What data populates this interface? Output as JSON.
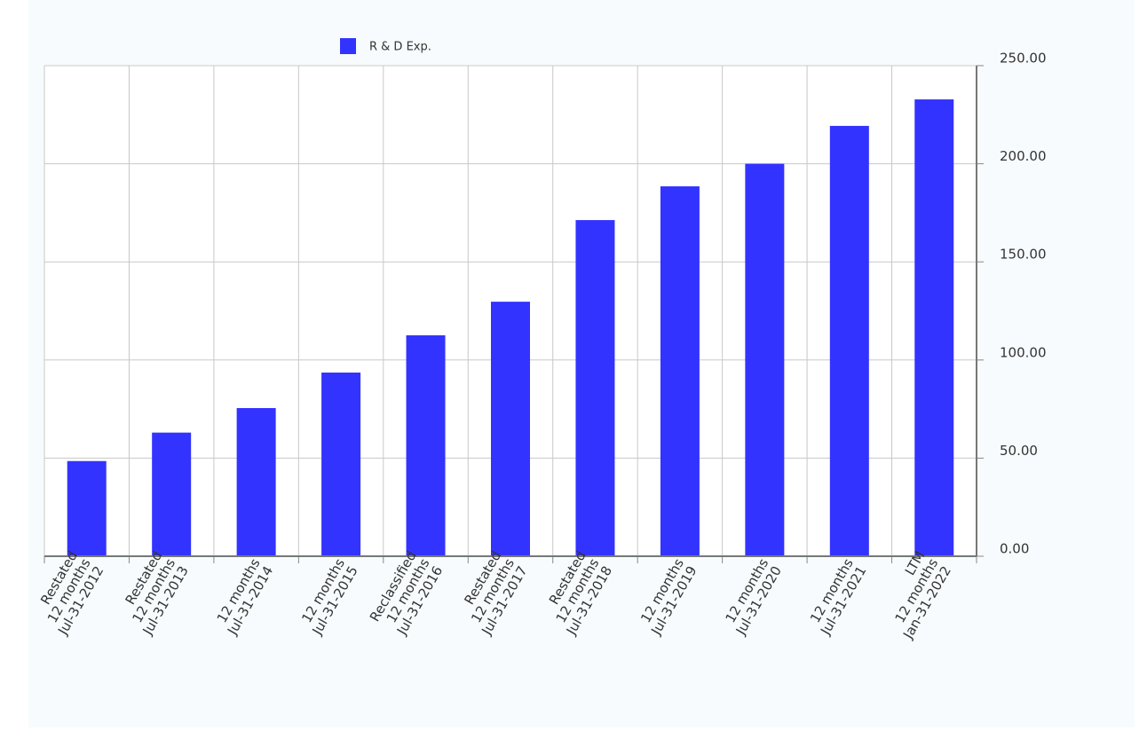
{
  "chart_data": {
    "type": "bar",
    "categories": [
      [
        "Restated",
        "12 months",
        "Jul-31-2012"
      ],
      [
        "Restated",
        "12 months",
        "Jul-31-2013"
      ],
      [
        "12 months",
        "Jul-31-2014"
      ],
      [
        "12 months",
        "Jul-31-2015"
      ],
      [
        "Reclassified",
        "12 months",
        "Jul-31-2016"
      ],
      [
        "Restated",
        "12 months",
        "Jul-31-2017"
      ],
      [
        "Restated",
        "12 months",
        "Jul-31-2018"
      ],
      [
        "12 months",
        "Jul-31-2019"
      ],
      [
        "12 months",
        "Jul-31-2020"
      ],
      [
        "12 months",
        "Jul-31-2021"
      ],
      [
        "LTM",
        "12 months",
        "Jan-31-2022"
      ]
    ],
    "series": [
      {
        "name": "R & D Exp.",
        "color": "#3333ff",
        "values": [
          48.5,
          63,
          75.5,
          93.6,
          112.6,
          129.7,
          171.3,
          188.5,
          200,
          219.3,
          232.8
        ]
      }
    ],
    "ylim": [
      0,
      250
    ],
    "yticks": [
      {
        "value": 0,
        "label": "0.00"
      },
      {
        "value": 50,
        "label": "50.00"
      },
      {
        "value": 100,
        "label": "100.00"
      },
      {
        "value": 150,
        "label": "150.00"
      },
      {
        "value": 200,
        "label": "200.00"
      },
      {
        "value": 250,
        "label": "250.00"
      }
    ],
    "grid": true
  }
}
